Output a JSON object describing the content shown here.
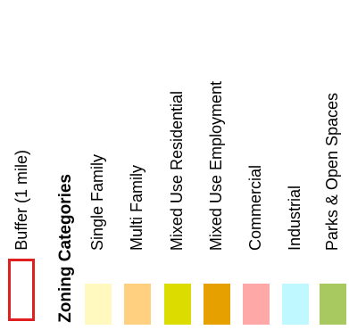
{
  "legend": {
    "buffer": {
      "label": "Buffer (1 mile)",
      "outline_color": "#e02020"
    },
    "heading": "Zoning Categories",
    "categories": [
      {
        "label": "Single Family",
        "color": "#fff8bf"
      },
      {
        "label": "Multi Family",
        "color": "#ffd080"
      },
      {
        "label": "Mixed Use Residential",
        "color": "#dcdc00"
      },
      {
        "label": "Mixed Use Employment",
        "color": "#e6a000"
      },
      {
        "label": "Commercial",
        "color": "#ffa8a8"
      },
      {
        "label": "Industrial",
        "color": "#c0f8ff"
      },
      {
        "label": "Parks & Open Spaces",
        "color": "#a8c860"
      }
    ]
  }
}
